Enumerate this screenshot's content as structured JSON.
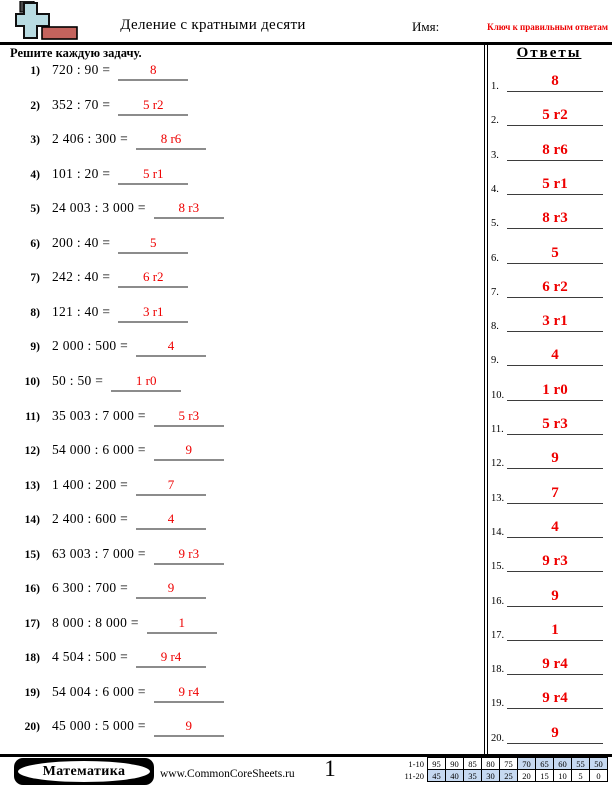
{
  "header": {
    "title": "Деление с кратными десяти",
    "name_label": "Имя:",
    "answer_key_label": "Ключ к правильным ответам"
  },
  "instructions": "Решите каждую задачу.",
  "problems": [
    {
      "num": "1)",
      "expr": "720 : 90 =",
      "answer": "8"
    },
    {
      "num": "2)",
      "expr": "352 : 70 =",
      "answer": "5 r2"
    },
    {
      "num": "3)",
      "expr": "2 406 : 300 =",
      "answer": "8 r6"
    },
    {
      "num": "4)",
      "expr": "101 : 20 =",
      "answer": "5 r1"
    },
    {
      "num": "5)",
      "expr": "24 003 : 3 000 =",
      "answer": "8 r3"
    },
    {
      "num": "6)",
      "expr": "200 : 40 =",
      "answer": "5"
    },
    {
      "num": "7)",
      "expr": "242 : 40 =",
      "answer": "6 r2"
    },
    {
      "num": "8)",
      "expr": "121 : 40 =",
      "answer": "3 r1"
    },
    {
      "num": "9)",
      "expr": "2 000 : 500 =",
      "answer": "4"
    },
    {
      "num": "10)",
      "expr": "50 : 50 =",
      "answer": "1 r0"
    },
    {
      "num": "11)",
      "expr": "35 003 : 7 000 =",
      "answer": "5 r3"
    },
    {
      "num": "12)",
      "expr": "54 000 : 6 000 =",
      "answer": "9"
    },
    {
      "num": "13)",
      "expr": "1 400 : 200 =",
      "answer": "7"
    },
    {
      "num": "14)",
      "expr": "2 400 : 600 =",
      "answer": "4"
    },
    {
      "num": "15)",
      "expr": "63 003 : 7 000 =",
      "answer": "9 r3"
    },
    {
      "num": "16)",
      "expr": "6 300 : 700 =",
      "answer": "9"
    },
    {
      "num": "17)",
      "expr": "8 000 : 8 000 =",
      "answer": "1"
    },
    {
      "num": "18)",
      "expr": "4 504 : 500 =",
      "answer": "9 r4"
    },
    {
      "num": "19)",
      "expr": "54 004 : 6 000 =",
      "answer": "9 r4"
    },
    {
      "num": "20)",
      "expr": "45 000 : 5 000 =",
      "answer": "9"
    }
  ],
  "answers_panel": {
    "title": "Ответы",
    "items": [
      {
        "num": "1.",
        "value": "8"
      },
      {
        "num": "2.",
        "value": "5 r2"
      },
      {
        "num": "3.",
        "value": "8 r6"
      },
      {
        "num": "4.",
        "value": "5 r1"
      },
      {
        "num": "5.",
        "value": "8 r3"
      },
      {
        "num": "6.",
        "value": "5"
      },
      {
        "num": "7.",
        "value": "6 r2"
      },
      {
        "num": "8.",
        "value": "3 r1"
      },
      {
        "num": "9.",
        "value": "4"
      },
      {
        "num": "10.",
        "value": "1 r0"
      },
      {
        "num": "11.",
        "value": "5 r3"
      },
      {
        "num": "12.",
        "value": "9"
      },
      {
        "num": "13.",
        "value": "7"
      },
      {
        "num": "14.",
        "value": "4"
      },
      {
        "num": "15.",
        "value": "9 r3"
      },
      {
        "num": "16.",
        "value": "9"
      },
      {
        "num": "17.",
        "value": "1"
      },
      {
        "num": "18.",
        "value": "9 r4"
      },
      {
        "num": "19.",
        "value": "9 r4"
      },
      {
        "num": "20.",
        "value": "9"
      }
    ]
  },
  "footer": {
    "subject": "Математика",
    "website": "www.CommonCoreSheets.ru",
    "page_number": "1",
    "score_table": {
      "rows": [
        {
          "label": "1-10",
          "cells": [
            {
              "v": "95",
              "shaded": false
            },
            {
              "v": "90",
              "shaded": false
            },
            {
              "v": "85",
              "shaded": false
            },
            {
              "v": "80",
              "shaded": false
            },
            {
              "v": "75",
              "shaded": false
            },
            {
              "v": "70",
              "shaded": true
            },
            {
              "v": "65",
              "shaded": true
            },
            {
              "v": "60",
              "shaded": true
            },
            {
              "v": "55",
              "shaded": true
            },
            {
              "v": "50",
              "shaded": true
            }
          ]
        },
        {
          "label": "11-20",
          "cells": [
            {
              "v": "45",
              "shaded": true
            },
            {
              "v": "40",
              "shaded": true
            },
            {
              "v": "35",
              "shaded": true
            },
            {
              "v": "30",
              "shaded": true
            },
            {
              "v": "25",
              "shaded": true
            },
            {
              "v": "20",
              "shaded": false
            },
            {
              "v": "15",
              "shaded": false
            },
            {
              "v": "10",
              "shaded": false
            },
            {
              "v": "5",
              "shaded": false
            },
            {
              "v": "0",
              "shaded": false
            }
          ]
        }
      ]
    }
  },
  "colors": {
    "answer_red": "#ee0000",
    "score_cell_blue": "#c6d9f1",
    "logo_blue": "#b9dce2",
    "logo_red": "#c4635d"
  }
}
